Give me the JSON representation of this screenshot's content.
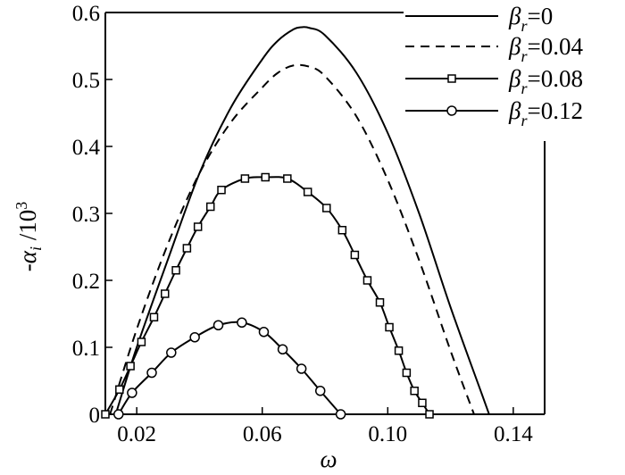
{
  "chart_data": {
    "type": "line",
    "xlabel": "ω",
    "ylabel": "-α",
    "ylabel_sub": "i",
    "ylabel_tail": " /10",
    "ylabel_sup": "3",
    "xlim": [
      0.01,
      0.15
    ],
    "ylim": [
      0,
      0.6
    ],
    "x_ticks": [
      0.02,
      0.06,
      0.1,
      0.14
    ],
    "x_tick_labels": [
      "0.02",
      "0.06",
      "0.10",
      "0.14"
    ],
    "y_ticks": [
      0,
      0.1,
      0.2,
      0.3,
      0.4,
      0.5,
      0.6
    ],
    "y_tick_labels": [
      "0",
      "0.1",
      "0.2",
      "0.3",
      "0.4",
      "0.5",
      "0.6"
    ],
    "legend_placement": "top-right",
    "grid": false,
    "series": [
      {
        "name": "β",
        "name_sub": "r",
        "name_val": "=0",
        "style": "solid",
        "marker": "none",
        "x": [
          0.0133,
          0.02,
          0.03,
          0.04,
          0.05,
          0.06,
          0.065,
          0.07,
          0.0725,
          0.075,
          0.08,
          0.09,
          0.1,
          0.11,
          0.12,
          0.13,
          0.1323
        ],
        "y": [
          0,
          0.1,
          0.232,
          0.36,
          0.458,
          0.53,
          0.558,
          0.575,
          0.578,
          0.577,
          0.566,
          0.51,
          0.42,
          0.3,
          0.16,
          0.03,
          0
        ]
      },
      {
        "name": "β",
        "name_sub": "r",
        "name_val": "=0.04",
        "style": "dashed",
        "marker": "none",
        "x": [
          0.0115,
          0.02,
          0.03,
          0.04,
          0.05,
          0.06,
          0.065,
          0.07,
          0.075,
          0.08,
          0.09,
          0.1,
          0.11,
          0.12,
          0.1275
        ],
        "y": [
          0,
          0.127,
          0.255,
          0.36,
          0.436,
          0.488,
          0.51,
          0.521,
          0.519,
          0.505,
          0.445,
          0.35,
          0.23,
          0.095,
          0
        ]
      },
      {
        "name": "β",
        "name_sub": "r",
        "name_val": "=0.08",
        "style": "solid",
        "marker": "square",
        "x": [
          0.01,
          0.0145,
          0.018,
          0.0215,
          0.0255,
          0.029,
          0.0325,
          0.036,
          0.0395,
          0.0435,
          0.047,
          0.0545,
          0.061,
          0.068,
          0.0745,
          0.0805,
          0.0855,
          0.0895,
          0.0935,
          0.0975,
          0.1005,
          0.1035,
          0.106,
          0.1085,
          0.111,
          0.1133
        ],
        "y": [
          0,
          0.037,
          0.072,
          0.108,
          0.145,
          0.18,
          0.215,
          0.248,
          0.28,
          0.31,
          0.335,
          0.352,
          0.354,
          0.352,
          0.332,
          0.308,
          0.275,
          0.238,
          0.2,
          0.167,
          0.13,
          0.095,
          0.062,
          0.035,
          0.017,
          0
        ]
      },
      {
        "name": "β",
        "name_sub": "r",
        "name_val": "=0.12",
        "style": "solid",
        "marker": "circle",
        "x": [
          0.0142,
          0.0185,
          0.0248,
          0.031,
          0.0385,
          0.046,
          0.0535,
          0.0605,
          0.0665,
          0.0725,
          0.0785,
          0.085
        ],
        "y": [
          0,
          0.032,
          0.062,
          0.092,
          0.115,
          0.133,
          0.137,
          0.123,
          0.097,
          0.068,
          0.035,
          0
        ]
      }
    ]
  }
}
